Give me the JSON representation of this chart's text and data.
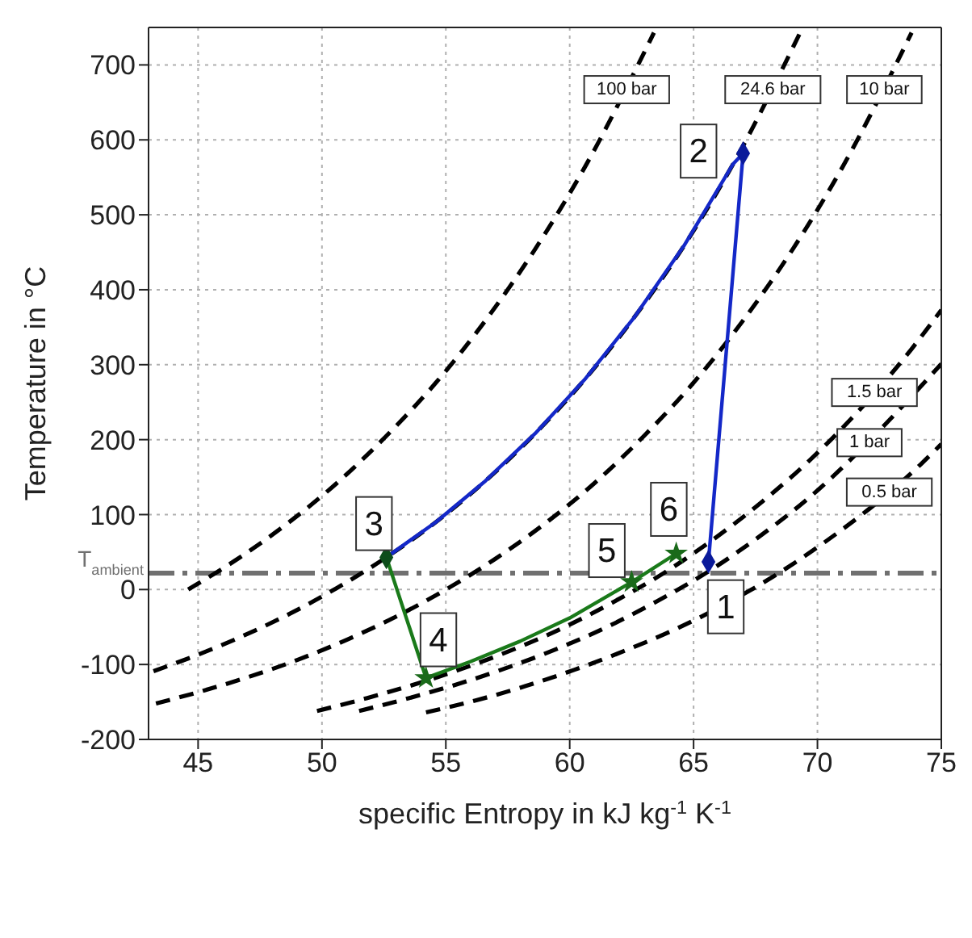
{
  "chart_data": {
    "type": "line",
    "xlabel": "specific Entropy in kJ kg$^{-1}$ K$^{-1}$",
    "ylabel": "Temperature in °C",
    "xlim": [
      43,
      75
    ],
    "ylim": [
      -200,
      750
    ],
    "xticks": [
      45,
      50,
      55,
      60,
      65,
      70,
      75
    ],
    "yticks": [
      -200,
      -100,
      0,
      100,
      200,
      300,
      400,
      500,
      600,
      700
    ],
    "grid": true,
    "series": [
      {
        "color": "#000000",
        "line_style": "dashed",
        "marker": "none",
        "x": [
          44.6,
          46.6,
          48.6,
          50.6,
          52.6,
          54.6,
          56.6,
          58.6,
          60.6,
          63.4
        ],
        "values": [
          0,
          41,
          88,
          142,
          205,
          276,
          359,
          454,
          563,
          743
        ]
      },
      {
        "color": "#000000",
        "line_style": "dashed",
        "marker": "none",
        "x": [
          43.2,
          44.6,
          46.6,
          48.6,
          50.6,
          52.6,
          54.6,
          56.6,
          58.6,
          60.6,
          62.6,
          64.6,
          66.6,
          69.3
        ],
        "values": [
          -109,
          -92,
          -65,
          -34,
          2,
          43,
          90,
          145,
          208,
          280,
          363,
          458,
          568,
          743
        ]
      },
      {
        "color": "#000000",
        "line_style": "dashed",
        "marker": "none",
        "x": [
          43.3,
          45,
          47,
          49,
          51,
          53,
          55,
          57,
          59,
          61,
          63,
          65,
          67,
          69,
          71,
          73.8
        ],
        "values": [
          -152,
          -137,
          -117,
          -94,
          -67,
          -36,
          0,
          41,
          88,
          142,
          205,
          276,
          359,
          454,
          563,
          743
        ]
      },
      {
        "color": "#000000",
        "line_style": "dashed",
        "marker": "none",
        "x": [
          49.8,
          51.8,
          53.8,
          55.8,
          57.8,
          59.8,
          61.8,
          63.8,
          65.8,
          67.8,
          69.8,
          73.8,
          75
        ],
        "values": [
          -162,
          -145,
          -126,
          -104,
          -79,
          -50,
          -16,
          22,
          67,
          118,
          176,
          321,
          373
        ]
      },
      {
        "color": "#000000",
        "line_style": "dashed",
        "marker": "none",
        "x": [
          51.5,
          53.5,
          55.5,
          57.5,
          59.5,
          61.5,
          63.5,
          65.5,
          67.5,
          69.5,
          75
        ],
        "values": [
          -162,
          -145,
          -126,
          -104,
          -79,
          -50,
          -16,
          22,
          67,
          118,
          301
        ]
      },
      {
        "color": "#000000",
        "line_style": "dashed",
        "marker": "none",
        "x": [
          54.2,
          56.2,
          58.2,
          60.2,
          62.2,
          64.2,
          66.2,
          68.2,
          70.2,
          74.2,
          75
        ],
        "values": [
          -164,
          -148,
          -129,
          -107,
          -82,
          -54,
          -21,
          17,
          61,
          168,
          194
        ]
      },
      {
        "color": "#1428c8",
        "line_style": "solid",
        "marker": "none",
        "x": [
          65.6,
          67,
          66.6,
          64.6,
          62.6,
          60.6,
          58.6,
          56.6,
          54.6,
          52.6
        ],
        "values": [
          37,
          582,
          568,
          458,
          363,
          280,
          208,
          145,
          90,
          43
        ]
      },
      {
        "color": "#1a7a1a",
        "line_style": "solid",
        "marker": "none",
        "x": [
          52.6,
          54.2,
          56,
          58,
          60,
          62.5,
          64.3
        ],
        "values": [
          43,
          -118,
          -96,
          -69,
          -38,
          10,
          48
        ]
      },
      {
        "type": "scatter",
        "color": "#0a1a9a",
        "marker": "diamond",
        "x": [
          65.6,
          67
        ],
        "values": [
          37,
          582
        ]
      },
      {
        "type": "scatter",
        "color": "#0d4d1a",
        "marker": "diamond",
        "x": [
          52.6
        ],
        "values": [
          43
        ]
      },
      {
        "type": "scatter",
        "color": "#1a6a1a",
        "marker": "star",
        "x": [
          54.2,
          62.5,
          64.3
        ],
        "values": [
          -118,
          10,
          48
        ]
      }
    ],
    "ref_lines": [
      {
        "axis": "y",
        "value": 22,
        "label": "T$_{ambient}$",
        "color": "#707070",
        "line_style": "dashed"
      }
    ],
    "annotations": [
      {
        "text": "100 bar",
        "x": 62.3,
        "y": 667
      },
      {
        "text": "24.6 bar",
        "x": 68.2,
        "y": 667
      },
      {
        "text": "10 bar",
        "x": 72.7,
        "y": 667
      },
      {
        "text": "1.5 bar",
        "x": 72.3,
        "y": 263
      },
      {
        "text": "1 bar",
        "x": 72.1,
        "y": 196
      },
      {
        "text": "0.5 bar",
        "x": 72.9,
        "y": 130
      },
      {
        "text": "1",
        "x": 66.3,
        "y": -23
      },
      {
        "text": "2",
        "x": 65.2,
        "y": 585
      },
      {
        "text": "3",
        "x": 52.1,
        "y": 88
      },
      {
        "text": "4",
        "x": 54.7,
        "y": -67
      },
      {
        "text": "5",
        "x": 61.5,
        "y": 52
      },
      {
        "text": "6",
        "x": 64.0,
        "y": 107
      }
    ]
  }
}
